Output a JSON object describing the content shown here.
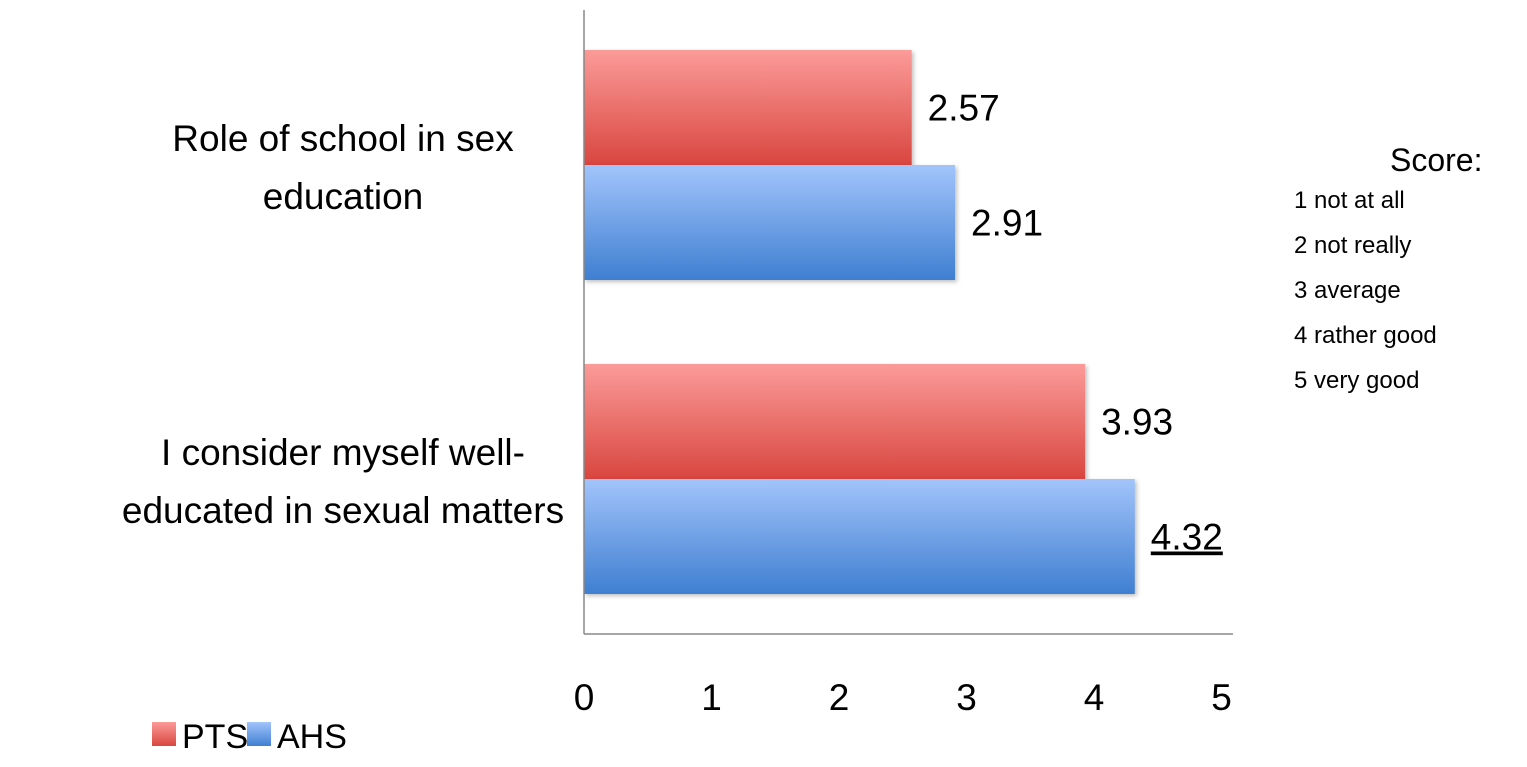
{
  "chart_data": {
    "type": "bar",
    "orientation": "horizontal",
    "categories": [
      [
        "Role of school in sex",
        "education"
      ],
      [
        "I consider myself well-",
        "educated in sexual matters"
      ]
    ],
    "series": [
      {
        "name": "PTS",
        "values": [
          2.57,
          3.93
        ],
        "labels": [
          "2.57",
          "3.93"
        ],
        "color": "#d9463f",
        "color_light": "#fb9b99"
      },
      {
        "name": "AHS",
        "values": [
          2.91,
          4.32
        ],
        "labels": [
          "2.91",
          "4.32"
        ],
        "color": "#3f7fd1",
        "color_light": "#a2c4fb"
      }
    ],
    "underlined_labels": [
      "4.32"
    ],
    "xlim": [
      0,
      5
    ],
    "xticks": [
      "0",
      "1",
      "2",
      "3",
      "4",
      "5"
    ],
    "grid": false,
    "legend_position": "bottom-left",
    "title": "",
    "xlabel": "",
    "ylabel": ""
  },
  "score_key": {
    "title": "Score:",
    "items": [
      "1 not at all",
      "2 not really",
      "3 average",
      "4 rather good",
      "5 very good"
    ]
  }
}
